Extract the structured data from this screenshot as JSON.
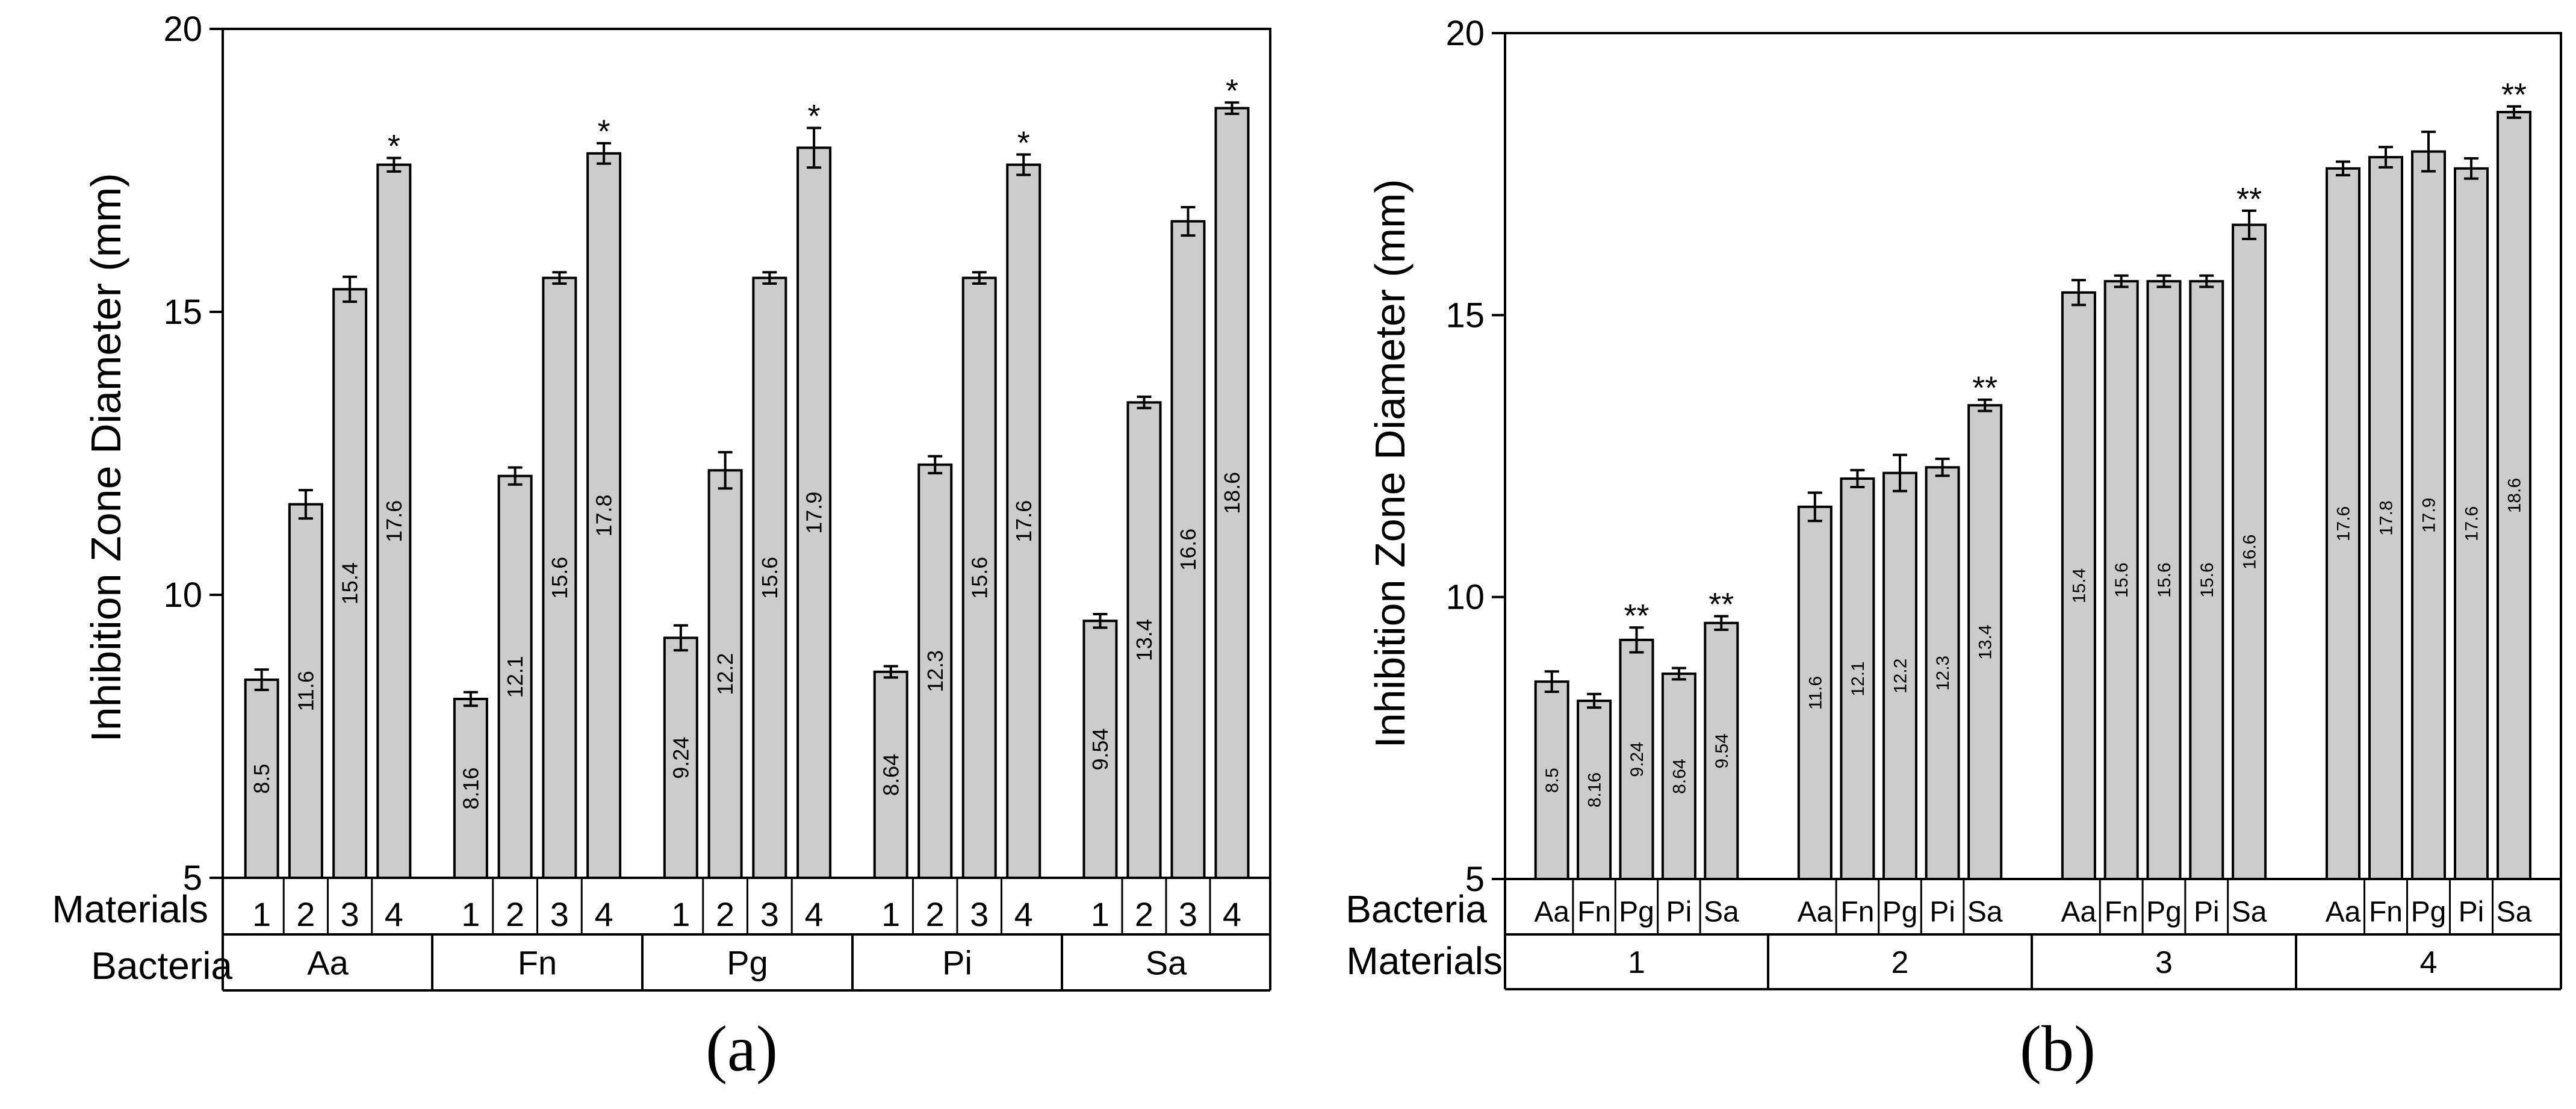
{
  "chart_data": [
    {
      "id": "a",
      "type": "bar",
      "caption": "(a)",
      "ylabel": "Inhibition Zone Diameter (mm)",
      "ylim": [
        5,
        20
      ],
      "yticks": [
        5,
        10,
        15,
        20
      ],
      "grid": false,
      "inner_row_label": "Materials",
      "outer_row_label": "Bacteria",
      "groups": [
        "Aa",
        "Fn",
        "Pg",
        "Pi",
        "Sa"
      ],
      "categories": [
        "1",
        "2",
        "3",
        "4"
      ],
      "bar_color": "#cccccc",
      "series": [
        {
          "name": "Aa",
          "values": [
            8.5,
            11.6,
            15.4,
            17.6
          ],
          "labels": [
            "8.5",
            "11.6",
            "15.4",
            "17.6"
          ],
          "errors": [
            0.18,
            0.25,
            0.22,
            0.12
          ],
          "marks": [
            "",
            "",
            "",
            "*"
          ]
        },
        {
          "name": "Fn",
          "values": [
            8.16,
            12.1,
            15.6,
            17.8
          ],
          "labels": [
            "8.16",
            "12.1",
            "15.6",
            "17.8"
          ],
          "errors": [
            0.12,
            0.15,
            0.1,
            0.18
          ],
          "marks": [
            "",
            "",
            "",
            "*"
          ]
        },
        {
          "name": "Pg",
          "values": [
            9.24,
            12.2,
            15.6,
            17.9
          ],
          "labels": [
            "9.24",
            "12.2",
            "15.6",
            "17.9"
          ],
          "errors": [
            0.22,
            0.32,
            0.1,
            0.35
          ],
          "marks": [
            "",
            "",
            "",
            "*"
          ]
        },
        {
          "name": "Pi",
          "values": [
            8.64,
            12.3,
            15.6,
            17.6
          ],
          "labels": [
            "8.64",
            "12.3",
            "15.6",
            "17.6"
          ],
          "errors": [
            0.1,
            0.15,
            0.1,
            0.18
          ],
          "marks": [
            "",
            "",
            "",
            "*"
          ]
        },
        {
          "name": "Sa",
          "values": [
            9.54,
            13.4,
            16.6,
            18.6
          ],
          "labels": [
            "9.54",
            "13.4",
            "16.6",
            "18.6"
          ],
          "errors": [
            0.12,
            0.1,
            0.25,
            0.1
          ],
          "marks": [
            "",
            "",
            "",
            "*"
          ]
        }
      ]
    },
    {
      "id": "b",
      "type": "bar",
      "caption": "(b)",
      "ylabel": "Inhibition Zone Diameter (mm)",
      "ylim": [
        5,
        20
      ],
      "yticks": [
        5,
        10,
        15,
        20
      ],
      "grid": false,
      "inner_row_label": "Bacteria",
      "outer_row_label": "Materials",
      "groups": [
        "1",
        "2",
        "3",
        "4"
      ],
      "categories": [
        "Aa",
        "Fn",
        "Pg",
        "Pi",
        "Sa"
      ],
      "bar_color": "#cccccc",
      "series": [
        {
          "name": "1",
          "values": [
            8.5,
            8.16,
            9.24,
            8.64,
            9.54
          ],
          "labels": [
            "8.5",
            "8.16",
            "9.24",
            "8.64",
            "9.54"
          ],
          "errors": [
            0.18,
            0.12,
            0.22,
            0.1,
            0.12
          ],
          "marks": [
            "",
            "",
            "**",
            "",
            "**"
          ]
        },
        {
          "name": "2",
          "values": [
            11.6,
            12.1,
            12.2,
            12.3,
            13.4
          ],
          "labels": [
            "11.6",
            "12.1",
            "12.2",
            "12.3",
            "13.4"
          ],
          "errors": [
            0.25,
            0.15,
            0.32,
            0.15,
            0.1
          ],
          "marks": [
            "",
            "",
            "",
            "",
            "**"
          ]
        },
        {
          "name": "3",
          "values": [
            15.4,
            15.6,
            15.6,
            15.6,
            16.6
          ],
          "labels": [
            "15.4",
            "15.6",
            "15.6",
            "15.6",
            "16.6"
          ],
          "errors": [
            0.22,
            0.1,
            0.1,
            0.1,
            0.25
          ],
          "marks": [
            "",
            "",
            "",
            "",
            "**"
          ]
        },
        {
          "name": "4",
          "values": [
            17.6,
            17.8,
            17.9,
            17.6,
            18.6
          ],
          "labels": [
            "17.6",
            "17.8",
            "17.9",
            "17.6",
            "18.6"
          ],
          "errors": [
            0.12,
            0.18,
            0.35,
            0.18,
            0.1
          ],
          "marks": [
            "",
            "",
            "",
            "",
            "**"
          ]
        }
      ]
    }
  ]
}
